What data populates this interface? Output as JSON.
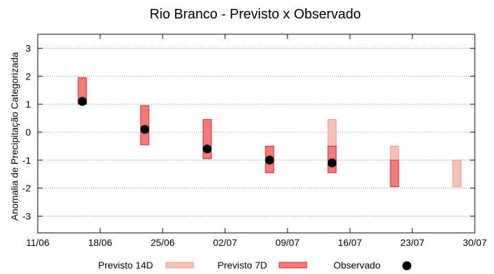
{
  "chart_data": {
    "type": "range-bar",
    "title": "Rio Branco - Previsto x Observado",
    "xlabel": "",
    "ylabel": "Anomalia de Precipitação Categorizada",
    "xlim": [
      "2000-06-11",
      "2000-07-30"
    ],
    "ylim": [
      -3.6,
      3.5
    ],
    "x_ticks": [
      "11/06",
      "18/06",
      "25/06",
      "02/07",
      "09/07",
      "16/07",
      "23/07",
      "30/07"
    ],
    "y_ticks": [
      3,
      2,
      1,
      0,
      -1,
      -2,
      -3
    ],
    "grid": true,
    "legend_position": "bottom",
    "series": [
      {
        "name": "Previsto 14D",
        "kind": "range",
        "color": "#f6c2b8",
        "edge": "#e89a8c",
        "points": [
          {
            "date": "2000-07-14",
            "low": -0.5,
            "high": 0.45
          },
          {
            "date": "2000-07-21",
            "low": -1.45,
            "high": -0.5
          },
          {
            "date": "2000-07-28",
            "low": -1.95,
            "high": -1.0
          }
        ]
      },
      {
        "name": "Previsto 7D",
        "kind": "range",
        "color": "#f77a7a",
        "edge": "#c8202b",
        "points": [
          {
            "date": "2000-06-16",
            "low": 1.0,
            "high": 1.95
          },
          {
            "date": "2000-06-23",
            "low": -0.45,
            "high": 0.95
          },
          {
            "date": "2000-06-30",
            "low": -0.95,
            "high": 0.45
          },
          {
            "date": "2000-07-07",
            "low": -1.45,
            "high": -0.5
          },
          {
            "date": "2000-07-14",
            "low": -1.45,
            "high": -0.5
          },
          {
            "date": "2000-07-21",
            "low": -1.95,
            "high": -1.0
          }
        ]
      },
      {
        "name": "Observado",
        "kind": "point",
        "color": "#000000",
        "points": [
          {
            "date": "2000-06-16",
            "value": 1.1
          },
          {
            "date": "2000-06-23",
            "value": 0.1
          },
          {
            "date": "2000-06-30",
            "value": -0.6
          },
          {
            "date": "2000-07-07",
            "value": -1.0
          },
          {
            "date": "2000-07-14",
            "value": -1.1
          }
        ]
      }
    ]
  }
}
